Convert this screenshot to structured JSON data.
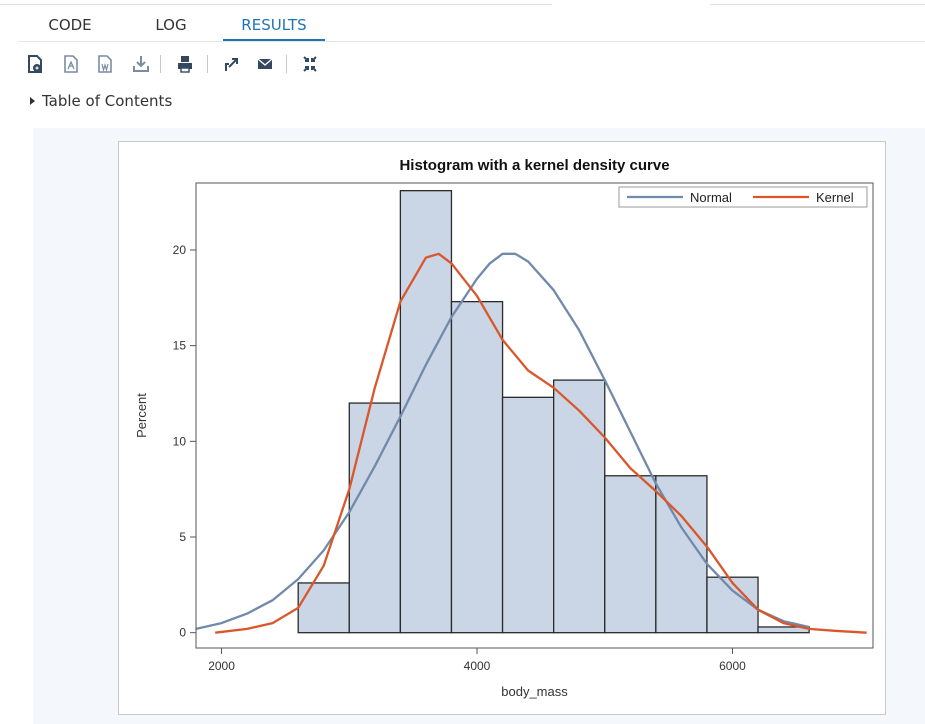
{
  "tabs": [
    {
      "label": "CODE",
      "active": false
    },
    {
      "label": "LOG",
      "active": false
    },
    {
      "label": "RESULTS",
      "active": true
    }
  ],
  "toolbar": {
    "icons": [
      "html-report-icon",
      "pdf-download-icon",
      "rtf-download-icon",
      "download-icon",
      "print-icon",
      "open-new-window-icon",
      "email-icon",
      "collapse-icon"
    ]
  },
  "toc": {
    "label": "Table of Contents"
  },
  "colors": {
    "accent": "#1f74b5",
    "bar_fill": "#cad5e5",
    "bar_edge": "#2a2a2a",
    "normal": "#7189ab",
    "kernel": "#d9572a"
  },
  "chart_data": {
    "type": "bar",
    "title": "Histogram with a kernel density curve",
    "xlabel": "body_mass",
    "ylabel": "Percent",
    "xlim": [
      1800,
      7100
    ],
    "ylim": [
      -0.8,
      23.5
    ],
    "xticks": [
      2000,
      4000,
      6000
    ],
    "yticks": [
      0,
      5,
      10,
      15,
      20
    ],
    "bins": [
      {
        "start": 2600,
        "end": 3000,
        "value": 2.6
      },
      {
        "start": 3000,
        "end": 3400,
        "value": 12.0
      },
      {
        "start": 3400,
        "end": 3800,
        "value": 23.1
      },
      {
        "start": 3800,
        "end": 4200,
        "value": 17.3
      },
      {
        "start": 4200,
        "end": 4600,
        "value": 12.3
      },
      {
        "start": 4600,
        "end": 5000,
        "value": 13.2
      },
      {
        "start": 5000,
        "end": 5400,
        "value": 8.2
      },
      {
        "start": 5400,
        "end": 5800,
        "value": 8.2
      },
      {
        "start": 5800,
        "end": 6200,
        "value": 2.9
      },
      {
        "start": 6200,
        "end": 6600,
        "value": 0.3
      }
    ],
    "series": [
      {
        "name": "Normal",
        "type": "line",
        "color": "#7189ab",
        "points": [
          [
            1800,
            0.2
          ],
          [
            2000,
            0.5
          ],
          [
            2200,
            1.0
          ],
          [
            2400,
            1.7
          ],
          [
            2600,
            2.8
          ],
          [
            2800,
            4.3
          ],
          [
            3000,
            6.3
          ],
          [
            3200,
            8.7
          ],
          [
            3400,
            11.3
          ],
          [
            3600,
            14.0
          ],
          [
            3800,
            16.5
          ],
          [
            4000,
            18.5
          ],
          [
            4100,
            19.3
          ],
          [
            4200,
            19.8
          ],
          [
            4300,
            19.8
          ],
          [
            4400,
            19.4
          ],
          [
            4600,
            17.9
          ],
          [
            4800,
            15.8
          ],
          [
            5000,
            13.2
          ],
          [
            5200,
            10.5
          ],
          [
            5400,
            7.8
          ],
          [
            5600,
            5.5
          ],
          [
            5800,
            3.6
          ],
          [
            6000,
            2.2
          ],
          [
            6200,
            1.2
          ],
          [
            6400,
            0.6
          ],
          [
            6600,
            0.3
          ]
        ]
      },
      {
        "name": "Kernel",
        "type": "line",
        "color": "#d9572a",
        "points": [
          [
            1950,
            0.0
          ],
          [
            2200,
            0.2
          ],
          [
            2400,
            0.5
          ],
          [
            2600,
            1.3
          ],
          [
            2800,
            3.5
          ],
          [
            3000,
            7.5
          ],
          [
            3200,
            12.8
          ],
          [
            3400,
            17.3
          ],
          [
            3600,
            19.6
          ],
          [
            3700,
            19.8
          ],
          [
            3800,
            19.3
          ],
          [
            4000,
            17.6
          ],
          [
            4200,
            15.3
          ],
          [
            4400,
            13.7
          ],
          [
            4600,
            12.8
          ],
          [
            4800,
            11.6
          ],
          [
            5000,
            10.2
          ],
          [
            5200,
            8.6
          ],
          [
            5400,
            7.4
          ],
          [
            5600,
            6.1
          ],
          [
            5800,
            4.5
          ],
          [
            6000,
            2.6
          ],
          [
            6200,
            1.2
          ],
          [
            6400,
            0.5
          ],
          [
            6600,
            0.2
          ],
          [
            6800,
            0.1
          ],
          [
            7050,
            0.0
          ]
        ]
      }
    ],
    "legend": {
      "position": "top-right",
      "entries": [
        "Normal",
        "Kernel"
      ]
    },
    "grid": false
  }
}
